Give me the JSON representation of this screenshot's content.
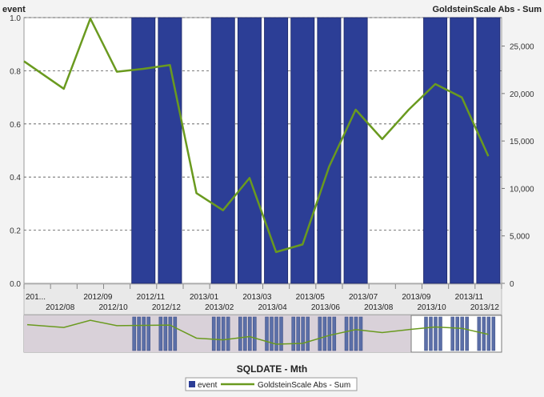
{
  "chart_data": {
    "type": "bar+line",
    "y_left_label": "event",
    "y_right_label": "GoldsteinScale Abs - Sum",
    "xlabel": "SQLDATE - Mth",
    "ylim_left": [
      0,
      1
    ],
    "ylim_right": [
      0,
      28000
    ],
    "y_left_ticks": [
      "0.0",
      "0.2",
      "0.4",
      "0.6",
      "0.8",
      "1.0"
    ],
    "y_right_ticks": [
      "0",
      "5,000",
      "10,000",
      "15,000",
      "20,000",
      "25,000"
    ],
    "x_labels_top": [
      "201...",
      "2012/09",
      "2012/11",
      "2013/01",
      "2013/03",
      "2013/05",
      "2013/07",
      "2013/09",
      "2013/11"
    ],
    "x_labels_bottom": [
      "2012/08",
      "2012/10",
      "2012/12",
      "2013/02",
      "2013/04",
      "2013/06",
      "2013/08",
      "2013/10",
      "2013/12"
    ],
    "categories": [
      "2012/07",
      "2012/08",
      "2012/09",
      "2012/10",
      "2012/11",
      "2012/12",
      "2013/01",
      "2013/02",
      "2013/03",
      "2013/04",
      "2013/05",
      "2013/06",
      "2013/07",
      "2013/08",
      "2013/09",
      "2013/10",
      "2013/11",
      "2013/12"
    ],
    "grid": "horizontal-dashed",
    "series": [
      {
        "name": "event",
        "type": "bar",
        "axis": "left",
        "color": "#2c3e96",
        "values": [
          0,
          0,
          0,
          0,
          1,
          1,
          0,
          1,
          1,
          1,
          1,
          1,
          1,
          0,
          0,
          1,
          1,
          1
        ]
      },
      {
        "name": "GoldsteinScale Abs - Sum",
        "type": "line",
        "axis": "right",
        "color": "#6a9a1f",
        "values": [
          23400,
          20500,
          27900,
          22300,
          22600,
          23000,
          9500,
          7700,
          11100,
          3300,
          4100,
          12300,
          18300,
          15200,
          18300,
          21000,
          19600,
          13400
        ]
      }
    ],
    "legend": {
      "position": "bottom",
      "items": [
        {
          "label": "event",
          "color": "#2c3e96"
        },
        {
          "label": "GoldsteinScale Abs - Sum",
          "color": "#6a9a1f"
        }
      ]
    }
  }
}
